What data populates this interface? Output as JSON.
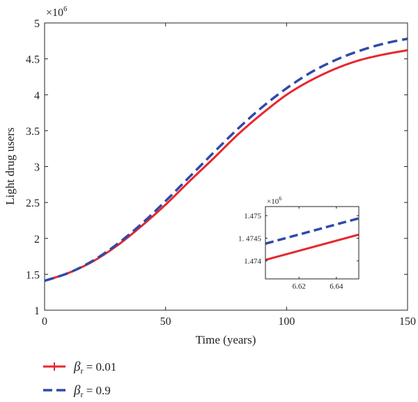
{
  "chart_data": [
    {
      "type": "line",
      "title": "",
      "xlabel": "Time (years)",
      "ylabel": "Light drug users",
      "y_multiplier_label": "×10",
      "y_multiplier_exp": "6",
      "xlim": [
        0,
        150
      ],
      "ylim": [
        1,
        5
      ],
      "x_ticks": [
        0,
        50,
        100,
        150
      ],
      "x_tick_labels": [
        "0",
        "50",
        "100",
        "150"
      ],
      "y_ticks": [
        1,
        1.5,
        2,
        2.5,
        3,
        3.5,
        4,
        4.5,
        5
      ],
      "y_tick_labels": [
        "1",
        "1.5",
        "2",
        "2.5",
        "3",
        "3.5",
        "4",
        "4.5",
        "5"
      ],
      "grid": false,
      "legend_position": "bottom-left, below plot",
      "series": [
        {
          "name": "β_r = 0.01",
          "legend_symbol": "β",
          "legend_subscript": "r",
          "legend_value": " = 0.01",
          "color": "#e8262d",
          "style": "solid",
          "x": [
            0,
            10,
            20,
            30,
            40,
            50,
            60,
            70,
            80,
            90,
            100,
            110,
            120,
            130,
            140,
            150
          ],
          "y": [
            1.41,
            1.52,
            1.68,
            1.9,
            2.17,
            2.47,
            2.8,
            3.12,
            3.45,
            3.74,
            4.0,
            4.2,
            4.36,
            4.48,
            4.56,
            4.62
          ]
        },
        {
          "name": "β_r = 0.9",
          "legend_symbol": "β",
          "legend_subscript": "r",
          "legend_value": " = 0.9",
          "color": "#2e4aa8",
          "style": "dashed",
          "x": [
            0,
            10,
            20,
            30,
            40,
            50,
            60,
            70,
            80,
            90,
            100,
            110,
            120,
            130,
            140,
            150
          ],
          "y": [
            1.41,
            1.52,
            1.69,
            1.92,
            2.2,
            2.52,
            2.86,
            3.2,
            3.53,
            3.83,
            4.09,
            4.31,
            4.48,
            4.61,
            4.71,
            4.78
          ]
        }
      ]
    },
    {
      "type": "line",
      "title": "",
      "xlabel": "",
      "ylabel": "",
      "y_multiplier_label": "×10",
      "y_multiplier_exp": "6",
      "xlim": [
        6.602,
        6.652
      ],
      "ylim": [
        1.4736,
        1.4752
      ],
      "x_ticks": [
        6.62,
        6.64
      ],
      "x_tick_labels": [
        "6.62",
        "6.64"
      ],
      "y_ticks": [
        1.474,
        1.4745,
        1.475
      ],
      "y_tick_labels": [
        "1.474",
        "1. 4745",
        "1.475"
      ],
      "grid": false,
      "series": [
        {
          "name": "β_r = 0.01",
          "color": "#e8262d",
          "style": "solid",
          "x": [
            6.602,
            6.652
          ],
          "y": [
            1.47402,
            1.47458
          ]
        },
        {
          "name": "β_r = 0.9",
          "color": "#2e4aa8",
          "style": "dashed",
          "x": [
            6.602,
            6.652
          ],
          "y": [
            1.47438,
            1.47494
          ]
        }
      ]
    }
  ]
}
